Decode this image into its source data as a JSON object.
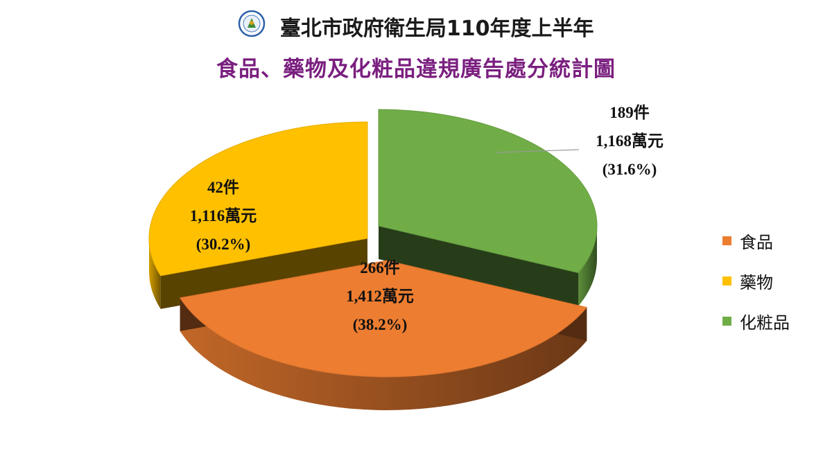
{
  "header": {
    "title": "臺北市政府衛生局110年度上半年",
    "subtitle": "食品、藥物及化粧品違規廣告處分統計圖"
  },
  "colors": {
    "food": "#ED7D31",
    "drug": "#FFC000",
    "cosmetic": "#70AD47",
    "title2": "#7A1F7F"
  },
  "chart_data": {
    "type": "pie",
    "style": "3d-exploded",
    "legend_position": "right",
    "slices": [
      {
        "name": "食品",
        "cases": "266件",
        "amount": "1,412萬元",
        "percent_label": "(38.2%)",
        "value": 38.2
      },
      {
        "name": "藥物",
        "cases": "42件",
        "amount": "1,116萬元",
        "percent_label": "(30.2%)",
        "value": 30.2
      },
      {
        "name": "化粧品",
        "cases": "189件",
        "amount": "1,168萬元",
        "percent_label": "(31.6%)",
        "value": 31.6
      }
    ]
  }
}
